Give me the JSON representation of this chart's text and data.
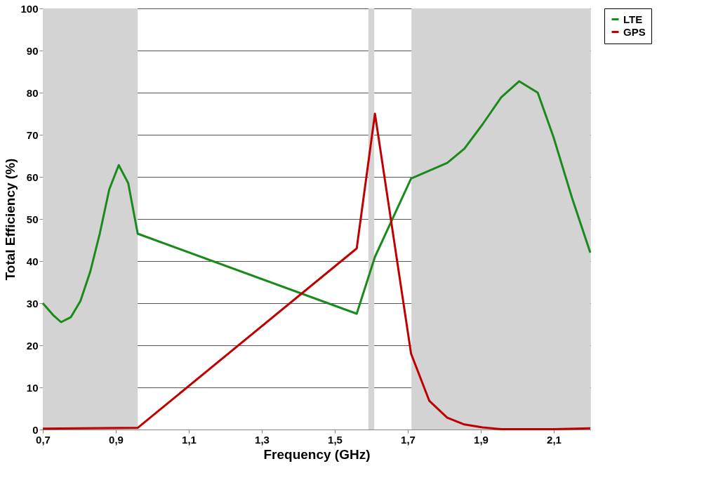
{
  "chart_data": {
    "type": "line",
    "xlabel": "Frequency (GHz)",
    "ylabel": "Total  Efficiency (%)",
    "xlim": [
      0.7,
      2.2
    ],
    "ylim": [
      0,
      100
    ],
    "xticks": [
      {
        "value": 0.7,
        "label": "0,7"
      },
      {
        "value": 0.9,
        "label": "0,9"
      },
      {
        "value": 1.1,
        "label": "1,1"
      },
      {
        "value": 1.3,
        "label": "1,3"
      },
      {
        "value": 1.5,
        "label": "1,5"
      },
      {
        "value": 1.7,
        "label": "1,7"
      },
      {
        "value": 1.9,
        "label": "1,9"
      },
      {
        "value": 2.1,
        "label": "2,1"
      }
    ],
    "yticks": [
      0,
      10,
      20,
      30,
      40,
      50,
      60,
      70,
      80,
      90,
      100
    ],
    "grid": "y",
    "legend": "right",
    "marker": "none",
    "line_style": "solid",
    "bands": [
      {
        "axis": "x",
        "from": 0.7,
        "to": 0.96,
        "color": "#d3d3d3"
      },
      {
        "axis": "x",
        "from": 1.592,
        "to": 1.608,
        "color": "#d3d3d3"
      },
      {
        "axis": "x",
        "from": 1.71,
        "to": 2.2,
        "color": "#d3d3d3"
      }
    ],
    "series": [
      {
        "name": "LTE",
        "color": "#1a8a1a",
        "x": [
          0.7,
          0.728,
          0.75,
          0.777,
          0.803,
          0.83,
          0.856,
          0.882,
          0.908,
          0.934,
          0.96,
          1.56,
          1.61,
          1.709,
          1.808,
          1.855,
          1.905,
          1.956,
          2.005,
          2.056,
          2.099,
          2.15,
          2.2
        ],
        "values": [
          30,
          27.2,
          25.5,
          26.7,
          30.5,
          37.5,
          46.5,
          57,
          62.8,
          58.5,
          46.5,
          27.5,
          41,
          59.6,
          63.3,
          66.7,
          72.5,
          78.9,
          82.7,
          80,
          69.5,
          55,
          42
        ]
      },
      {
        "name": "GPS",
        "color": "#c00000",
        "x": [
          0.7,
          0.96,
          1.56,
          1.61,
          1.709,
          1.759,
          1.808,
          1.855,
          1.905,
          1.956,
          2.005,
          2.1,
          2.2
        ],
        "values": [
          0.2,
          0.4,
          43,
          75,
          18,
          6.8,
          2.8,
          1.2,
          0.5,
          0.1,
          0.1,
          0.1,
          0.3
        ]
      }
    ]
  }
}
